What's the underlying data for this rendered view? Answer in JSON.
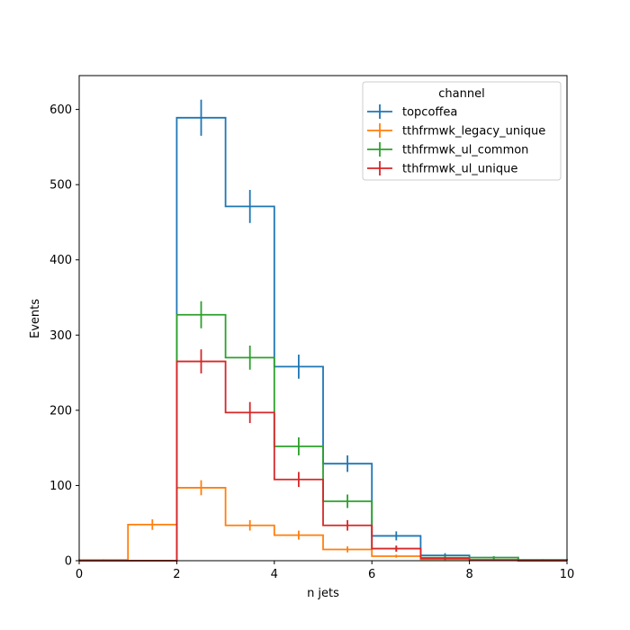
{
  "chart_data": {
    "type": "histogram-step",
    "xlabel": "n jets",
    "ylabel": "Events",
    "xlim": [
      0,
      10
    ],
    "ylim": [
      0,
      645
    ],
    "xticks": [
      0,
      2,
      4,
      6,
      8,
      10
    ],
    "yticks": [
      0,
      100,
      200,
      300,
      400,
      500,
      600
    ],
    "bin_edges": [
      0,
      1,
      2,
      3,
      4,
      5,
      6,
      7,
      8,
      9,
      10
    ],
    "legend": {
      "title": "channel",
      "placement": "top-right"
    },
    "series": [
      {
        "name": "topcoffea",
        "color": "#1f77b4",
        "values": [
          0,
          0,
          589,
          471,
          258,
          129,
          33,
          7,
          4,
          1
        ],
        "errors": [
          0,
          0,
          24,
          22,
          16,
          11,
          6,
          3,
          2,
          1
        ]
      },
      {
        "name": "tthfrmwk_legacy_unique",
        "color": "#ff7f0e",
        "values": [
          1,
          48,
          97,
          47,
          34,
          15,
          6,
          2,
          1,
          0
        ],
        "errors": [
          1,
          7,
          10,
          7,
          6,
          4,
          2,
          1,
          1,
          0
        ]
      },
      {
        "name": "tthfrmwk_ul_common",
        "color": "#2ca02c",
        "values": [
          0,
          0,
          327,
          270,
          152,
          79,
          16,
          4,
          4,
          1
        ],
        "errors": [
          0,
          0,
          18,
          16,
          12,
          9,
          4,
          2,
          2,
          1
        ]
      },
      {
        "name": "tthfrmwk_ul_unique",
        "color": "#d62728",
        "values": [
          0,
          0,
          265,
          197,
          108,
          47,
          16,
          3,
          1,
          0
        ],
        "errors": [
          0,
          0,
          16,
          14,
          10,
          7,
          4,
          2,
          1,
          0
        ]
      }
    ]
  }
}
